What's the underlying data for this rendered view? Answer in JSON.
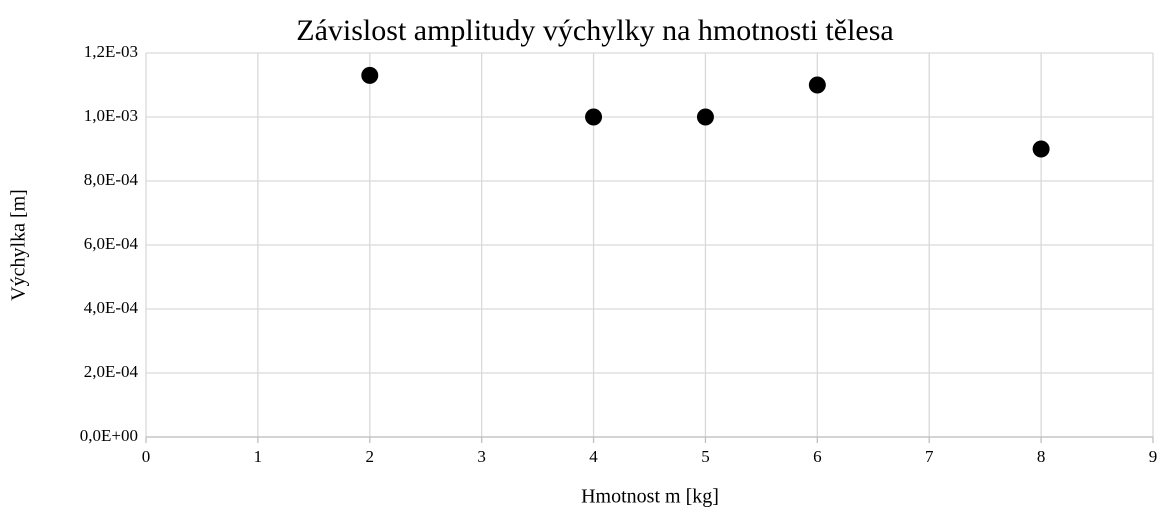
{
  "chart_data": {
    "type": "scatter",
    "title": "Závislost amplitudy výchylky na hmotnosti tělesa",
    "xlabel": "Hmotnost m [kg]",
    "ylabel": "Výchylka [m]",
    "x": [
      2,
      4,
      5,
      6,
      8
    ],
    "values": [
      0.00113,
      0.001,
      0.001,
      0.0011,
      0.0009
    ],
    "color": "#000000",
    "xlim": [
      0,
      9
    ],
    "xticks": [
      0,
      1,
      2,
      3,
      4,
      5,
      6,
      7,
      8,
      9
    ],
    "ylim": [
      0,
      0.0012
    ],
    "yticks": [
      {
        "value": 0,
        "label": "0,0E+00"
      },
      {
        "value": 0.0002,
        "label": "2,0E-04"
      },
      {
        "value": 0.0004,
        "label": "4,0E-04"
      },
      {
        "value": 0.0006,
        "label": "6,0E-04"
      },
      {
        "value": 0.0008,
        "label": "8,0E-04"
      },
      {
        "value": 0.001,
        "label": "1,0E-03"
      },
      {
        "value": 0.0012,
        "label": "1,2E-03"
      }
    ],
    "grid": true
  }
}
